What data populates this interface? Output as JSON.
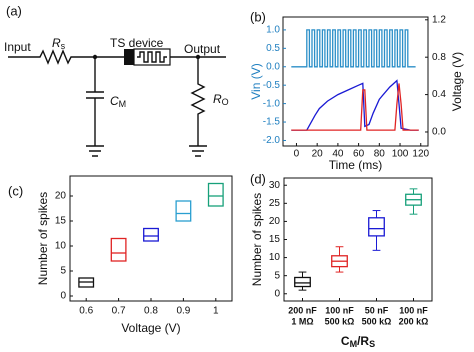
{
  "diagram": {
    "label": "(a)",
    "input": "Input",
    "output": "Output",
    "device": "TS device",
    "rs": {
      "symbol": "R",
      "sub": "s"
    },
    "cm": {
      "symbol": "C",
      "sub": "M"
    },
    "ro": {
      "symbol": "R",
      "sub": "O"
    }
  },
  "chart_data": [
    {
      "type": "line",
      "label": "(b)",
      "xlabel": "Time (ms)",
      "ylabel": "Vin (V)",
      "y2label": "Voltage (V)",
      "ylabel_color": "#1f7fc0",
      "xlim": [
        -13,
        127
      ],
      "xticks": [
        0,
        20,
        40,
        60,
        80,
        100,
        120
      ],
      "ylim": [
        -2.15,
        1.35
      ],
      "yticks": [
        {
          "value": -2,
          "label": "-2.0"
        },
        -1.5,
        {
          "value": -1,
          "label": "-1.0"
        },
        -0.5,
        {
          "value": 0,
          "label": "0.0"
        },
        0.5,
        {
          "value": 1,
          "label": "1.0"
        }
      ],
      "y2lim": [
        -0.15,
        1.23
      ],
      "y2ticks": [
        {
          "value": 0,
          "label": "0.0"
        },
        0.4,
        0.8,
        1.2
      ],
      "series": [
        {
          "color": "#2b8fc8",
          "axis": "y",
          "x": [
            -5,
            10,
            10,
            12.5,
            12.5,
            15,
            15,
            17.5,
            17.5,
            20,
            20,
            22.5,
            22.5,
            25,
            25,
            27.5,
            27.5,
            30,
            30,
            32.5,
            32.5,
            35,
            35,
            37.5,
            37.5,
            40,
            40,
            42.5,
            42.5,
            45,
            45,
            47.5,
            47.5,
            50,
            50,
            52.5,
            52.5,
            55,
            55,
            57.5,
            57.5,
            60,
            60,
            62.5,
            62.5,
            65,
            65,
            67.5,
            67.5,
            70,
            70,
            72.5,
            72.5,
            75,
            75,
            77.5,
            77.5,
            80,
            80,
            82.5,
            82.5,
            85,
            85,
            87.5,
            87.5,
            90,
            90,
            92.5,
            92.5,
            95,
            95,
            97.5,
            97.5,
            100,
            100,
            102.5,
            102.5,
            105,
            105,
            107.5,
            107.5,
            115
          ],
          "values": [
            0,
            0,
            1,
            1,
            0,
            0,
            1,
            1,
            0,
            0,
            1,
            1,
            0,
            0,
            1,
            1,
            0,
            0,
            1,
            1,
            0,
            0,
            1,
            1,
            0,
            0,
            1,
            1,
            0,
            0,
            1,
            1,
            0,
            0,
            1,
            1,
            0,
            0,
            1,
            1,
            0,
            0,
            1,
            1,
            0,
            0,
            1,
            1,
            0,
            0,
            1,
            1,
            0,
            0,
            1,
            1,
            0,
            0,
            1,
            1,
            0,
            0,
            1,
            1,
            0,
            0,
            1,
            1,
            0,
            0,
            1,
            1,
            0,
            0,
            1,
            1,
            0,
            0,
            1,
            1,
            0,
            0
          ]
        },
        {
          "color": "#1a1ad4",
          "axis": "y2",
          "x": [
            -5,
            10,
            14,
            18,
            22,
            30,
            40,
            50,
            60,
            64,
            66,
            70,
            74,
            80,
            90,
            97,
            99,
            101,
            110,
            118
          ],
          "values": [
            0.02,
            0.02,
            0.1,
            0.18,
            0.25,
            0.33,
            0.4,
            0.45,
            0.5,
            0.52,
            0.06,
            0.08,
            0.2,
            0.35,
            0.48,
            0.55,
            0.3,
            0.04,
            0.02,
            0.02
          ]
        },
        {
          "color": "#e02424",
          "axis": "y2",
          "x": [
            -5,
            62,
            64,
            66,
            68,
            95,
            97,
            99,
            101,
            103,
            118
          ],
          "values": [
            0.02,
            0.02,
            0.45,
            0.45,
            0.02,
            0.02,
            0.3,
            0.52,
            0.3,
            0.02,
            0.02
          ]
        }
      ]
    },
    {
      "type": "box",
      "label": "(c)",
      "xlabel": "Voltage (V)",
      "ylabel": "Number of spikes",
      "categories": [
        "0.6",
        "0.7",
        "0.8",
        "0.9",
        "1"
      ],
      "ylim": [
        -1,
        24
      ],
      "yticks": [
        0,
        5,
        10,
        15,
        20
      ],
      "boxes": [
        {
          "color": "#111111",
          "q1": 1.8,
          "median": 2.8,
          "q3": 3.6
        },
        {
          "color": "#e02424",
          "q1": 7,
          "median": 8.6,
          "q3": 11.5
        },
        {
          "color": "#1a1ad4",
          "q1": 11,
          "median": 12,
          "q3": 13.5
        },
        {
          "color": "#2a9fd0",
          "q1": 15,
          "median": 16.5,
          "q3": 19
        },
        {
          "color": "#17a07a",
          "q1": 18,
          "median": 20,
          "q3": 22.5
        }
      ]
    },
    {
      "type": "box",
      "label": "(d)",
      "ylabel": "Number of spikes",
      "xlabel": [
        {
          "text": "C"
        },
        {
          "text": "M",
          "sub": true
        },
        {
          "text": "/R"
        },
        {
          "text": "S",
          "sub": true
        }
      ],
      "categories": [
        [
          "200 nF",
          "1 MΩ"
        ],
        [
          "100 nF",
          "500 kΩ"
        ],
        [
          "50 nF",
          "500 kΩ"
        ],
        [
          "100 nF",
          "200 kΩ"
        ]
      ],
      "ylim": [
        -2,
        32
      ],
      "yticks": [
        0,
        5,
        10,
        15,
        20,
        25,
        30
      ],
      "boxes": [
        {
          "color": "#111111",
          "low": 1,
          "q1": 2,
          "median": 3,
          "q3": 4.5,
          "high": 6
        },
        {
          "color": "#e02424",
          "low": 6,
          "q1": 7.5,
          "median": 9,
          "q3": 10.5,
          "high": 13
        },
        {
          "color": "#1a1ad4",
          "low": 12,
          "q1": 16,
          "median": 18,
          "q3": 21,
          "high": 23
        },
        {
          "color": "#17a07a",
          "low": 22,
          "q1": 24.5,
          "median": 26,
          "q3": 27.5,
          "high": 29
        }
      ]
    }
  ]
}
